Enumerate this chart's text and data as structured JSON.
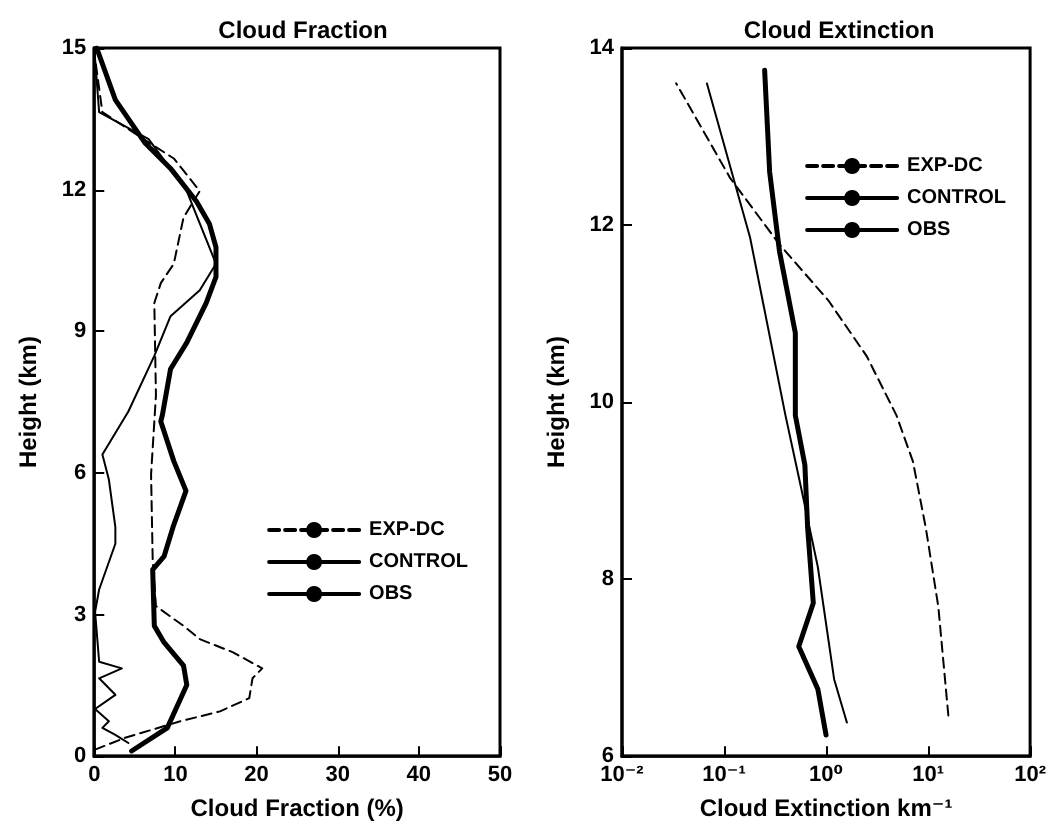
{
  "chart_data": [
    {
      "type": "line",
      "title": "Cloud Fraction",
      "xlabel": "Cloud Fraction (%)",
      "ylabel": "Height (km)",
      "xlim": [
        0,
        50
      ],
      "xticks": [
        0,
        10,
        20,
        30,
        40,
        50
      ],
      "ylim": [
        0,
        15
      ],
      "yticks": [
        0,
        3,
        6,
        9,
        12,
        15
      ],
      "grid": false,
      "legend": "right",
      "marker": "none",
      "series": [
        {
          "name": "EXP-DC",
          "color": "#000000",
          "line_style": "dashed",
          "x": [
            0.1,
            3.8,
            10.6,
            15.5,
            19.1,
            19.5,
            20.7,
            17.1,
            13.0,
            11.0,
            7.6,
            7.2,
            7.0,
            7.6,
            7.4,
            8.2,
            9.8,
            11.0,
            13.0,
            9.8,
            6.7,
            1.0,
            0
          ],
          "values": [
            0.14,
            0.39,
            0.74,
            0.95,
            1.23,
            1.65,
            1.86,
            2.2,
            2.48,
            2.76,
            3.18,
            4.16,
            5.97,
            7.64,
            9.6,
            10.02,
            10.43,
            11.41,
            11.97,
            12.66,
            13.0,
            13.64,
            14.9
          ]
        },
        {
          "name": "CONTROL",
          "color": "#000000",
          "line_style": "solid",
          "x": [
            4.2,
            2.6,
            1.0,
            1.8,
            0.1,
            2.6,
            0.6,
            3.4,
            0.6,
            0.1,
            0.6,
            2.6,
            2.6,
            1.8,
            1.0,
            4.2,
            7.4,
            9.4,
            13.0,
            15.0,
            11.4,
            6.7,
            0.6,
            0
          ],
          "values": [
            0.28,
            0.45,
            0.6,
            0.74,
            1.0,
            1.3,
            1.65,
            1.86,
            2.0,
            3.06,
            3.53,
            4.5,
            4.85,
            5.86,
            6.39,
            7.3,
            8.48,
            9.32,
            9.87,
            10.43,
            11.97,
            13.07,
            13.64,
            15.0
          ]
        },
        {
          "name": "OBS",
          "color": "#000000",
          "line_style": "solid",
          "x": [
            4.6,
            9.0,
            11.4,
            11.0,
            8.6,
            7.4,
            7.2,
            8.6,
            9.7,
            11.3,
            9.8,
            8.2,
            8.4,
            9.4,
            11.4,
            13.8,
            15.0,
            15.0,
            14.2,
            12.6,
            9.4,
            6.2,
            2.6,
            0.3
          ],
          "values": [
            0.11,
            0.6,
            1.51,
            1.92,
            2.41,
            2.76,
            3.95,
            4.23,
            4.85,
            5.62,
            6.25,
            7.09,
            7.23,
            8.2,
            8.76,
            9.6,
            10.15,
            10.78,
            11.27,
            11.75,
            12.45,
            13.0,
            13.9,
            15.0
          ]
        }
      ]
    },
    {
      "type": "line",
      "title": "Cloud Extinction",
      "xlabel": "Cloud Extinction km⁻¹",
      "ylabel": "Height (km)",
      "log": "x",
      "xlim": [
        0.01,
        100
      ],
      "xticks": [
        {
          "value": 0.01,
          "label": "10⁻²"
        },
        {
          "value": 0.1,
          "label": "10⁻¹"
        },
        {
          "value": 1,
          "label": "10⁰"
        },
        {
          "value": 10,
          "label": "10¹"
        },
        {
          "value": 100,
          "label": "10²"
        }
      ],
      "ylim": [
        6,
        14
      ],
      "yticks": [
        6,
        8,
        10,
        12,
        14
      ],
      "grid": false,
      "legend": "top right",
      "marker": "none",
      "series": [
        {
          "name": "EXP-DC",
          "color": "#000000",
          "line_style": "dashed",
          "x": [
            15.8,
            12.6,
            9.5,
            7.1,
            4.9,
            2.5,
            1.05,
            0.35,
            0.115,
            0.034
          ],
          "values": [
            6.46,
            7.69,
            8.58,
            9.33,
            9.85,
            10.52,
            11.15,
            11.78,
            12.53,
            13.6
          ]
        },
        {
          "name": "CONTROL",
          "color": "#000000",
          "line_style": "solid",
          "x": [
            1.6,
            1.2,
            0.83,
            0.57,
            0.4,
            0.18,
            0.068
          ],
          "values": [
            6.38,
            6.87,
            8.14,
            9.03,
            9.85,
            11.86,
            13.6
          ]
        },
        {
          "name": "OBS",
          "color": "#000000",
          "line_style": "solid",
          "x": [
            1.0,
            0.83,
            0.54,
            0.75,
            0.66,
            0.62,
            0.5,
            0.5,
            0.35,
            0.28,
            0.25
          ],
          "values": [
            6.24,
            6.76,
            7.24,
            7.73,
            8.58,
            9.29,
            9.85,
            10.78,
            11.7,
            12.6,
            13.75
          ]
        }
      ]
    }
  ]
}
